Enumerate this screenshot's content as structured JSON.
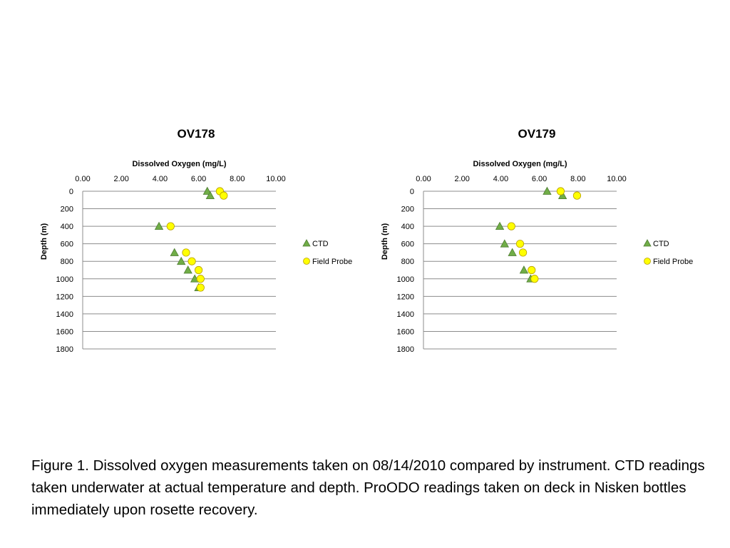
{
  "chart_data": [
    {
      "type": "scatter",
      "title": "OV178",
      "xlabel": "Dissolved Oxygen (mg/L)",
      "ylabel": "Depth (m)",
      "xlim": [
        0,
        10
      ],
      "ylim": [
        0,
        1800
      ],
      "y_inverted": true,
      "x_axis_position": "top",
      "x_ticks": [
        "0.00",
        "2.00",
        "4.00",
        "6.00",
        "8.00",
        "10.00"
      ],
      "y_ticks": [
        "0",
        "200",
        "400",
        "600",
        "800",
        "1000",
        "1200",
        "1400",
        "1600",
        "1800"
      ],
      "grid": "horizontal",
      "legend_position": "right",
      "series": [
        {
          "name": "CTD",
          "marker": "triangle",
          "color": "#70ad47",
          "points": [
            {
              "x": 6.45,
              "y": 0
            },
            {
              "x": 6.6,
              "y": 50
            },
            {
              "x": 3.95,
              "y": 400
            },
            {
              "x": 4.75,
              "y": 700
            },
            {
              "x": 5.1,
              "y": 800
            },
            {
              "x": 5.45,
              "y": 900
            },
            {
              "x": 5.8,
              "y": 1000
            },
            {
              "x": 6.0,
              "y": 1100
            }
          ]
        },
        {
          "name": "Field Probe",
          "marker": "circle",
          "color": "#ffff00",
          "points": [
            {
              "x": 7.1,
              "y": 0
            },
            {
              "x": 7.3,
              "y": 50
            },
            {
              "x": 4.55,
              "y": 400
            },
            {
              "x": 5.35,
              "y": 700
            },
            {
              "x": 5.65,
              "y": 800
            },
            {
              "x": 6.0,
              "y": 900
            },
            {
              "x": 6.1,
              "y": 1000
            },
            {
              "x": 6.1,
              "y": 1100
            }
          ]
        }
      ]
    },
    {
      "type": "scatter",
      "title": "OV179",
      "xlabel": "Dissolved Oxygen (mg/L)",
      "ylabel": "Depth (m)",
      "xlim": [
        0,
        10
      ],
      "ylim": [
        0,
        1800
      ],
      "y_inverted": true,
      "x_axis_position": "top",
      "x_ticks": [
        "0.00",
        "2.00",
        "4.00",
        "6.00",
        "8.00",
        "10.00"
      ],
      "y_ticks": [
        "0",
        "200",
        "400",
        "600",
        "800",
        "1000",
        "1200",
        "1400",
        "1600",
        "1800"
      ],
      "grid": "horizontal",
      "legend_position": "right",
      "series": [
        {
          "name": "CTD",
          "marker": "triangle",
          "color": "#70ad47",
          "points": [
            {
              "x": 6.4,
              "y": 0
            },
            {
              "x": 7.2,
              "y": 50
            },
            {
              "x": 3.95,
              "y": 400
            },
            {
              "x": 4.2,
              "y": 600
            },
            {
              "x": 4.6,
              "y": 700
            },
            {
              "x": 5.2,
              "y": 900
            },
            {
              "x": 5.55,
              "y": 1000
            }
          ]
        },
        {
          "name": "Field Probe",
          "marker": "circle",
          "color": "#ffff00",
          "points": [
            {
              "x": 7.1,
              "y": 0
            },
            {
              "x": 7.95,
              "y": 50
            },
            {
              "x": 4.55,
              "y": 400
            },
            {
              "x": 5.0,
              "y": 600
            },
            {
              "x": 5.15,
              "y": 700
            },
            {
              "x": 5.6,
              "y": 900
            },
            {
              "x": 5.75,
              "y": 1000
            }
          ]
        }
      ]
    }
  ],
  "caption": "Figure 1. Dissolved oxygen measurements taken on 08/14/2010 compared by instrument.  CTD readings taken underwater at actual temperature and depth.  ProODO readings taken on deck in Nisken bottles immediately upon rosette recovery."
}
